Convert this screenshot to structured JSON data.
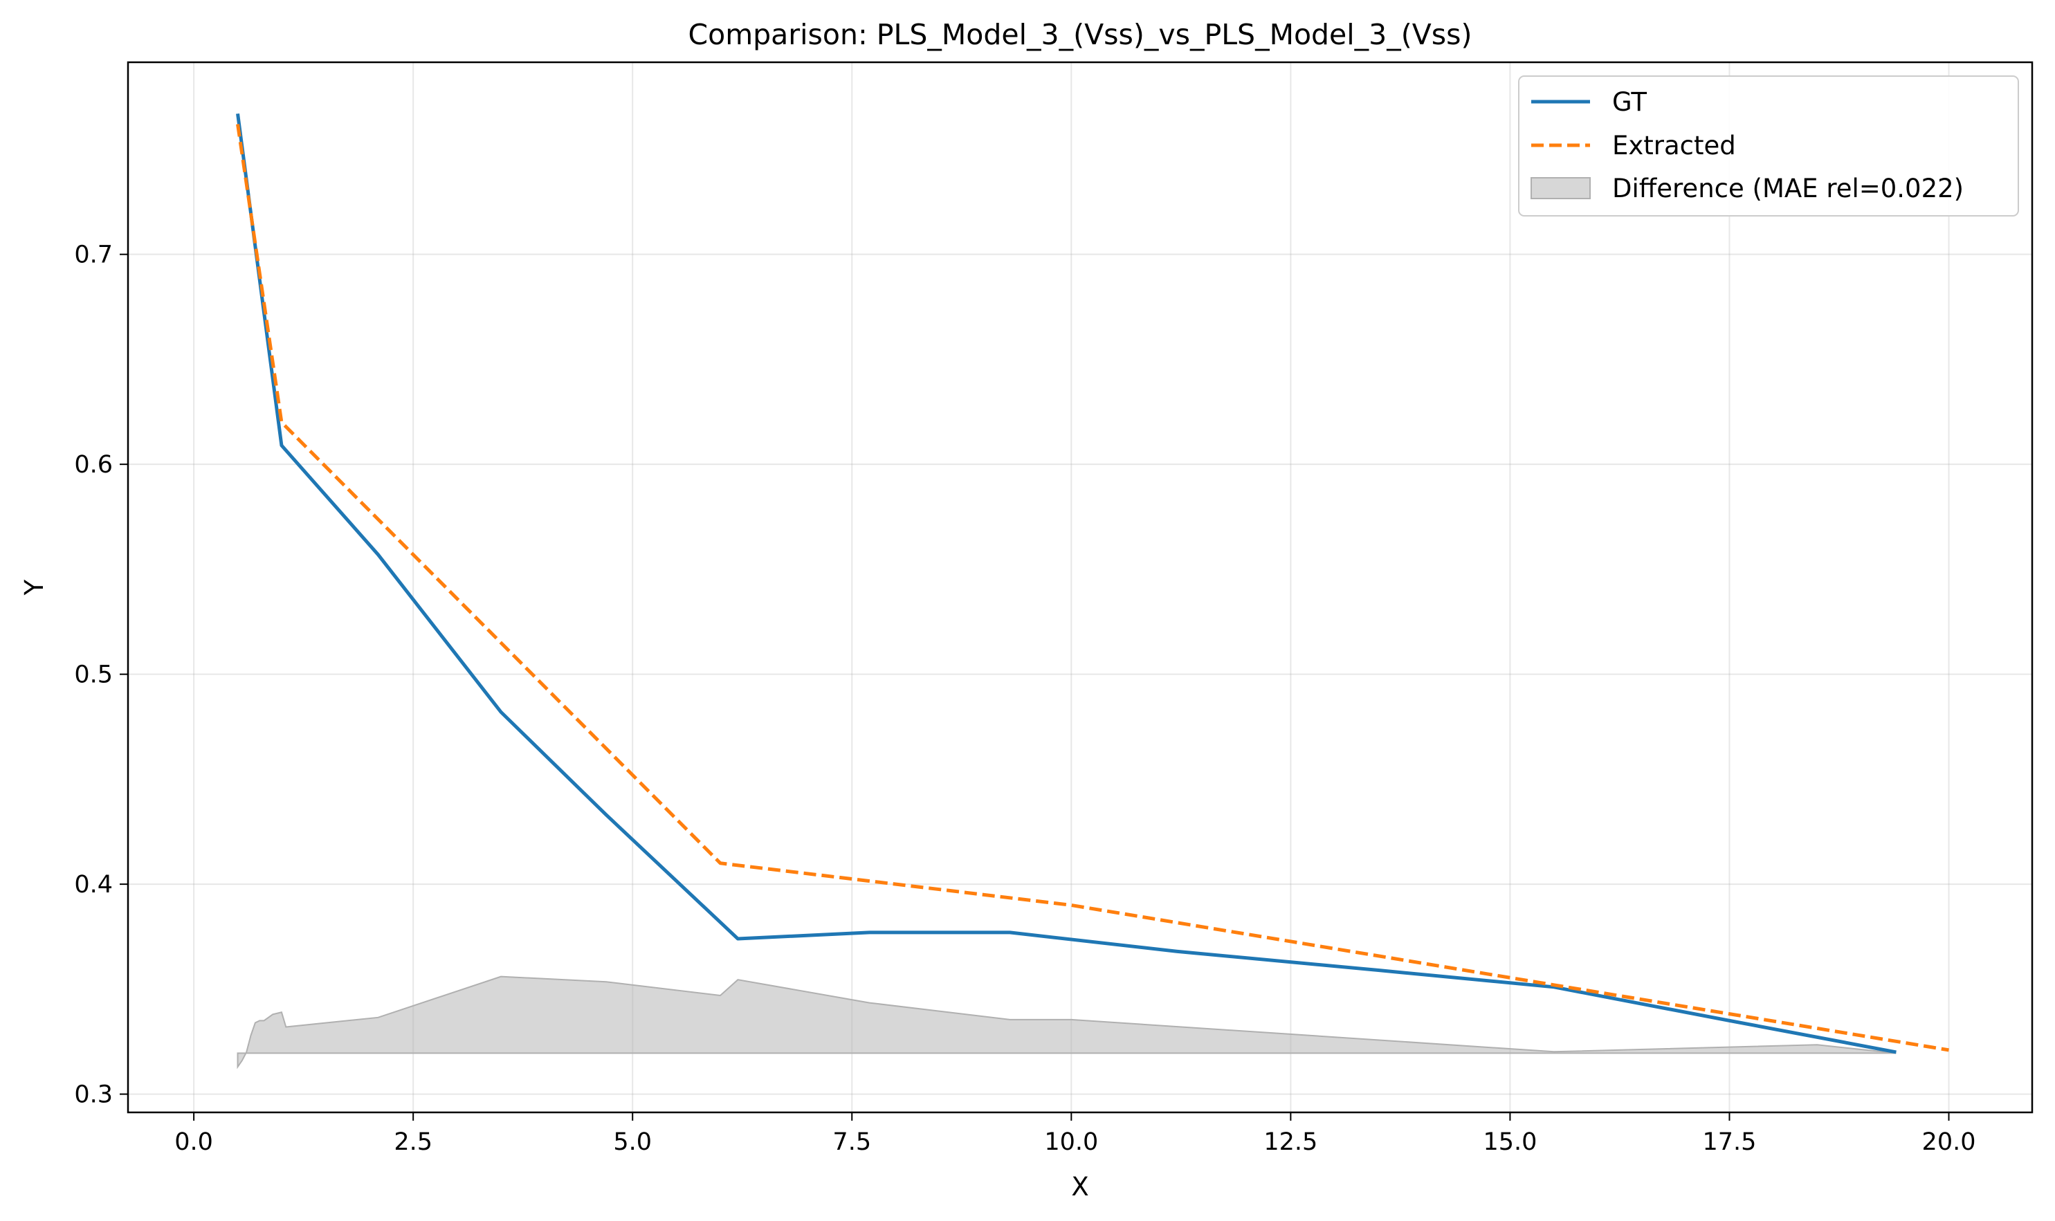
{
  "chart_data": {
    "type": "line",
    "title": "Comparison: PLS_Model_3_(Vss)_vs_PLS_Model_3_(Vss)",
    "xlabel": "X",
    "ylabel": "Y",
    "xlim": [
      -0.75,
      20.95
    ],
    "ylim": [
      0.2913,
      0.7915
    ],
    "xticks": [
      0.0,
      2.5,
      5.0,
      7.5,
      10.0,
      12.5,
      15.0,
      17.5,
      20.0
    ],
    "xtick_labels": [
      "0.0",
      "2.5",
      "5.0",
      "7.5",
      "10.0",
      "12.5",
      "15.0",
      "17.5",
      "20.0"
    ],
    "yticks": [
      0.3,
      0.4,
      0.5,
      0.6,
      0.7
    ],
    "ytick_labels": [
      "0.3",
      "0.4",
      "0.5",
      "0.6",
      "0.7"
    ],
    "grid": true,
    "legend_position": "top-right",
    "series": [
      {
        "name": "GT",
        "style": "solid",
        "color": "#1f77b4",
        "x": [
          0.5,
          1.0,
          2.1,
          3.5,
          4.7,
          6.2,
          7.7,
          9.3,
          11.2,
          13.5,
          15.5,
          17.5,
          19.4
        ],
        "y": [
          0.767,
          0.609,
          0.557,
          0.482,
          0.433,
          0.374,
          0.377,
          0.377,
          0.368,
          0.359,
          0.351,
          0.335,
          0.32
        ]
      },
      {
        "name": "Extracted",
        "style": "dashed",
        "color": "#ff7f0e",
        "x": [
          0.5,
          1.0,
          6.0,
          10.0,
          15.5,
          20.0
        ],
        "y": [
          0.762,
          0.62,
          0.41,
          0.39,
          0.352,
          0.321
        ]
      },
      {
        "name": "Difference (MAE rel=0.022)",
        "style": "fill",
        "color": "#b0b0b0",
        "baseline": 0.3195,
        "x": [
          0.5,
          0.55,
          0.6,
          0.65,
          0.7,
          0.75,
          0.8,
          0.9,
          1.0,
          1.05,
          2.1,
          3.5,
          4.7,
          6.0,
          6.2,
          7.7,
          9.3,
          10.0,
          15.5,
          18.5,
          19.4
        ],
        "y": [
          0.313,
          0.316,
          0.32,
          0.328,
          0.334,
          0.335,
          0.335,
          0.338,
          0.339,
          0.332,
          0.3365,
          0.356,
          0.3535,
          0.347,
          0.3545,
          0.3435,
          0.3355,
          0.3355,
          0.3202,
          0.3235,
          0.3195
        ]
      }
    ]
  }
}
